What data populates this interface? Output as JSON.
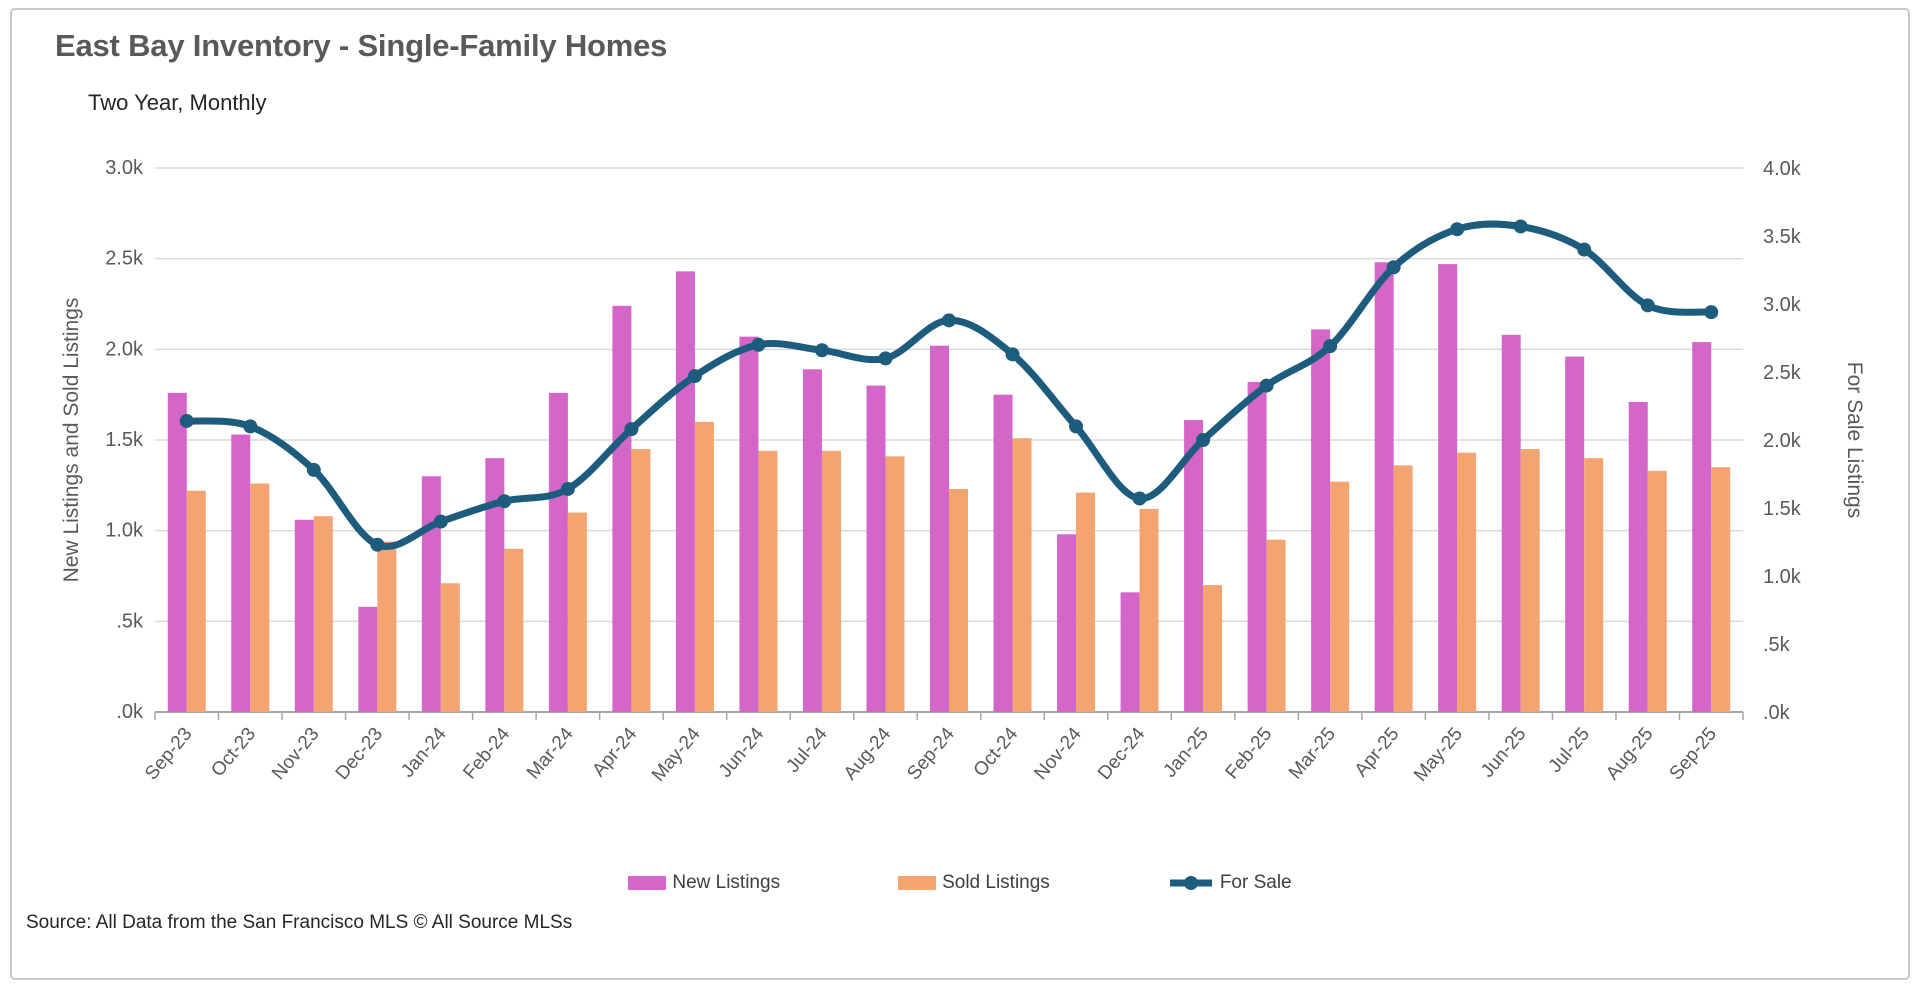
{
  "chart": {
    "title": "East Bay Inventory - Single-Family Homes",
    "subtitle": "Two Year, Monthly"
  },
  "axes": {
    "left": {
      "title": "New Listings and Sold Listings",
      "ticks": [
        "3.0k",
        "2.5k",
        "2.0k",
        "1.5k",
        "1.0k",
        ".5k",
        ".0k"
      ],
      "range_k": [
        0,
        3.0
      ]
    },
    "right": {
      "title": "For Sale Listings",
      "ticks": [
        "4.0k",
        "3.5k",
        "3.0k",
        "2.5k",
        "2.0k",
        "1.5k",
        "1.0k",
        ".5k",
        ".0k"
      ],
      "range_k": [
        0,
        4.0
      ]
    }
  },
  "legend": {
    "items": [
      {
        "label": "New Listings",
        "type": "bar",
        "color": "#d466c9"
      },
      {
        "label": "Sold Listings",
        "type": "bar",
        "color": "#f3a471"
      },
      {
        "label": "For Sale",
        "type": "line",
        "color": "#1e5c7e"
      }
    ]
  },
  "footer": {
    "source": "Source: All Data from the San Francisco MLS © All Source MLSs"
  },
  "colors": {
    "new_listings": "#d466c9",
    "sold_listings": "#f3a471",
    "for_sale_line": "#1e5c7e",
    "gridline": "#d9d9d9",
    "axis_line": "#a6a6a6",
    "tick_text": "#595959"
  },
  "chart_data": {
    "type": "bar",
    "units": "thousands of listings (k)",
    "categories": [
      "Sep-23",
      "Oct-23",
      "Nov-23",
      "Dec-23",
      "Jan-24",
      "Feb-24",
      "Mar-24",
      "Apr-24",
      "May-24",
      "Jun-24",
      "Jul-24",
      "Aug-24",
      "Sep-24",
      "Oct-24",
      "Nov-24",
      "Dec-24",
      "Jan-25",
      "Feb-25",
      "Mar-25",
      "Apr-25",
      "May-25",
      "Jun-25",
      "Jul-25",
      "Aug-25",
      "Sep-25"
    ],
    "series": [
      {
        "name": "New Listings",
        "axis": "left",
        "type": "bar",
        "values": [
          1.76,
          1.53,
          1.06,
          0.58,
          1.3,
          1.4,
          1.76,
          2.24,
          2.43,
          2.07,
          1.89,
          1.8,
          2.02,
          1.75,
          0.98,
          0.66,
          1.61,
          1.82,
          2.11,
          2.48,
          2.47,
          2.08,
          1.96,
          1.71,
          2.04
        ]
      },
      {
        "name": "Sold Listings",
        "axis": "left",
        "type": "bar",
        "values": [
          1.22,
          1.26,
          1.08,
          0.94,
          0.71,
          0.9,
          1.1,
          1.45,
          1.6,
          1.44,
          1.44,
          1.41,
          1.23,
          1.51,
          1.21,
          1.12,
          0.7,
          0.95,
          1.27,
          1.36,
          1.43,
          1.45,
          1.4,
          1.33,
          1.35
        ]
      },
      {
        "name": "For Sale",
        "axis": "right",
        "type": "line",
        "values": [
          2.14,
          2.1,
          1.78,
          1.23,
          1.4,
          1.55,
          1.64,
          2.08,
          2.47,
          2.7,
          2.66,
          2.6,
          2.88,
          2.63,
          2.1,
          1.57,
          2.0,
          2.4,
          2.69,
          3.27,
          3.55,
          3.57,
          3.4,
          2.99,
          2.94
        ]
      }
    ],
    "title": "East Bay Inventory - Single-Family Homes",
    "xlabel": "",
    "ylabel_left": "New Listings and Sold Listings",
    "ylabel_right": "For Sale Listings",
    "ylim_left_k": [
      0,
      3.0
    ],
    "ylim_right_k": [
      0,
      4.0
    ],
    "grid": true,
    "legend_position": "bottom"
  }
}
